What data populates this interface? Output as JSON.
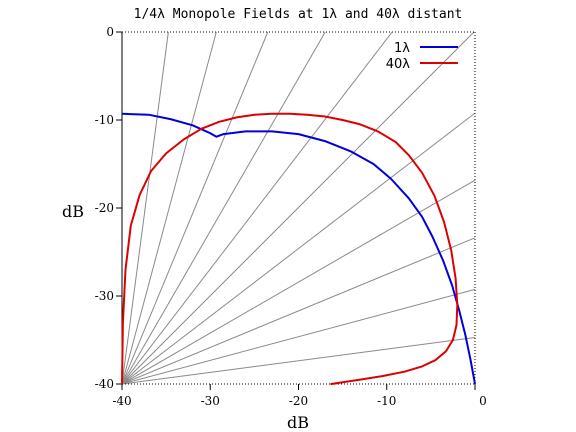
{
  "chart_data": {
    "type": "line",
    "title": "1/4λ Monopole Fields at 1λ and 40λ distant",
    "xlabel": "dB",
    "ylabel": "dB",
    "xlim": [
      -40,
      0
    ],
    "ylim": [
      -40,
      0
    ],
    "x_ticks": [
      "-40",
      "-30",
      "-20",
      "-10",
      "0"
    ],
    "y_ticks": [
      "0",
      "-10",
      "-20",
      "-30",
      "-40"
    ],
    "radial_grid_angles_deg": [
      7.5,
      15,
      22.5,
      30,
      37.5,
      45,
      52.5,
      60,
      67.5,
      75,
      82.5
    ],
    "legend_position": "top-right",
    "series": [
      {
        "name": "1λ",
        "color": "#0000dd",
        "x": [
          -40.0,
          -37.0,
          -34.5,
          -32.0,
          -30.0,
          -29.3,
          -28.5,
          -26.0,
          -23.0,
          -20.0,
          -17.0,
          -14.0,
          -11.5,
          -9.5,
          -7.5,
          -6.0,
          -4.8,
          -3.6,
          -2.6,
          -1.8,
          -1.1,
          -0.5,
          0.0
        ],
        "y": [
          -9.3,
          -9.4,
          -9.9,
          -10.6,
          -11.5,
          -11.9,
          -11.6,
          -11.3,
          -11.3,
          -11.6,
          -12.4,
          -13.6,
          -15.0,
          -16.7,
          -18.9,
          -21.0,
          -23.3,
          -26.0,
          -28.8,
          -31.6,
          -34.4,
          -37.3,
          -40.0
        ]
      },
      {
        "name": "40λ",
        "color": "#dd0000",
        "x": [
          -40.0,
          -39.9,
          -39.6,
          -39.0,
          -38.0,
          -36.7,
          -35.0,
          -33.0,
          -31.0,
          -29.0,
          -27.0,
          -25.0,
          -23.0,
          -21.0,
          -19.0,
          -17.0,
          -15.0,
          -13.0,
          -11.0,
          -9.0,
          -7.5,
          -6.0,
          -4.6,
          -3.5,
          -2.7,
          -2.2,
          -2.0,
          -2.1,
          -2.5,
          -3.3,
          -4.5,
          -6.0,
          -8.0,
          -10.5,
          -13.0,
          -15.0,
          -16.3,
          -15.5
        ],
        "y": [
          -40.0,
          -33.0,
          -27.0,
          -22.0,
          -18.5,
          -15.8,
          -13.8,
          -12.2,
          -11.0,
          -10.2,
          -9.7,
          -9.4,
          -9.3,
          -9.3,
          -9.4,
          -9.6,
          -10.0,
          -10.5,
          -11.3,
          -12.5,
          -14.0,
          -16.0,
          -18.6,
          -21.6,
          -24.8,
          -28.0,
          -31.0,
          -33.3,
          -35.0,
          -36.3,
          -37.3,
          -38.0,
          -38.6,
          -39.1,
          -39.5,
          -39.8,
          -40.0,
          -39.9
        ]
      }
    ]
  }
}
